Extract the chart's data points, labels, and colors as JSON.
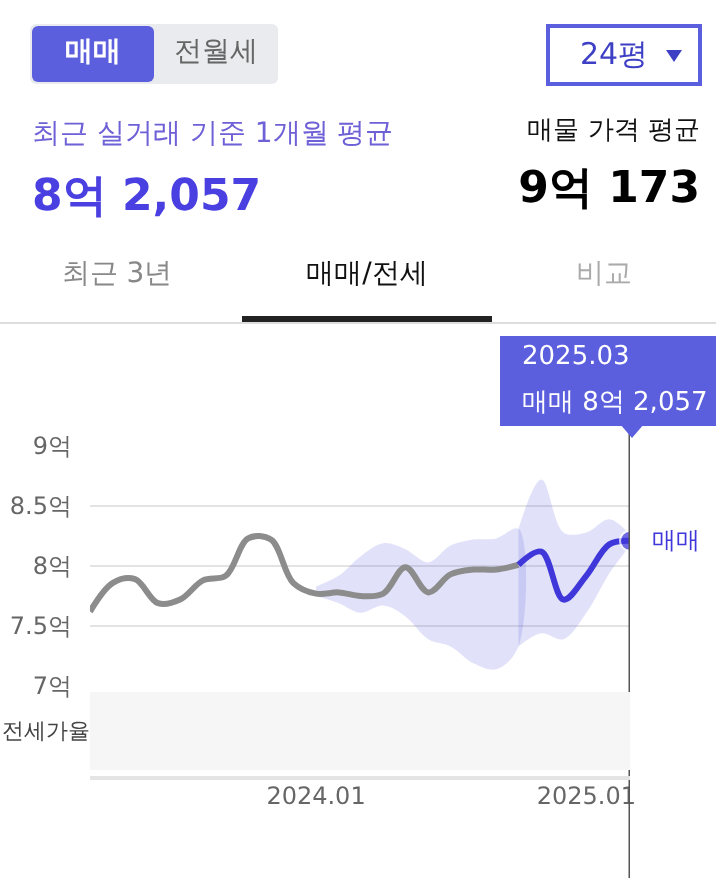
{
  "chart_data": {
    "type": "line",
    "x": [
      "2023-03",
      "2023-04",
      "2023-05",
      "2023-06",
      "2023-07",
      "2023-08",
      "2023-09",
      "2023-10",
      "2023-11",
      "2023-12",
      "2024-01",
      "2024-02",
      "2024-03",
      "2024-04",
      "2024-05",
      "2024-06",
      "2024-07",
      "2024-08",
      "2024-09",
      "2024-10",
      "2024-11",
      "2024-12",
      "2025-01",
      "2025-02",
      "2025-03"
    ],
    "series": [
      {
        "color": "#8c8c8c",
        "values": [
          7.62,
          7.86,
          7.89,
          7.69,
          7.72,
          7.88,
          7.92,
          8.23,
          8.22,
          7.86,
          7.77,
          7.78,
          7.75,
          7.77,
          7.99,
          7.78,
          7.93,
          7.97,
          7.97,
          8.01,
          null,
          null,
          null,
          null,
          null
        ],
        "lower": [
          null,
          null,
          null,
          null,
          null,
          null,
          null,
          null,
          null,
          null,
          7.75,
          7.69,
          7.61,
          7.67,
          7.58,
          7.39,
          7.33,
          7.19,
          7.14,
          7.33,
          null,
          null,
          null,
          null,
          null
        ],
        "upper": [
          null,
          null,
          null,
          null,
          null,
          null,
          null,
          null,
          null,
          null,
          7.83,
          7.92,
          8.08,
          8.19,
          8.14,
          8.03,
          8.17,
          8.22,
          8.23,
          8.31,
          null,
          null,
          null,
          null,
          null
        ]
      },
      {
        "name": "매매",
        "color": "#3f37d9",
        "values": [
          null,
          null,
          null,
          null,
          null,
          null,
          null,
          null,
          null,
          null,
          null,
          null,
          null,
          null,
          null,
          null,
          null,
          null,
          null,
          8.01,
          8.12,
          7.72,
          7.92,
          8.18,
          8.21
        ],
        "lower": [
          null,
          null,
          null,
          null,
          null,
          null,
          null,
          null,
          null,
          null,
          null,
          null,
          null,
          null,
          null,
          null,
          null,
          null,
          null,
          7.33,
          7.44,
          7.39,
          7.61,
          7.94,
          8.19
        ],
        "upper": [
          null,
          null,
          null,
          null,
          null,
          null,
          null,
          null,
          null,
          null,
          null,
          null,
          null,
          null,
          null,
          null,
          null,
          null,
          null,
          8.31,
          8.72,
          8.28,
          8.28,
          8.39,
          8.25
        ]
      }
    ],
    "xlim": [
      "2023-03",
      "2025-03"
    ],
    "xticks": [
      {
        "value": "2024-01",
        "label": "2024.01"
      },
      {
        "value": "2025-01",
        "label": "2025.01"
      }
    ],
    "ylim": [
      7,
      9
    ],
    "yticks": [
      {
        "value": 7,
        "label": "7억"
      },
      {
        "value": 7.5,
        "label": "7.5억"
      },
      {
        "value": 8,
        "label": "8억"
      },
      {
        "value": 8.5,
        "label": "8.5억"
      },
      {
        "value": 9,
        "label": "9억"
      }
    ],
    "grid": "y",
    "ref_lines": [
      {
        "axis": "x",
        "value": "2025-03",
        "color": "#555555"
      }
    ],
    "annotations": [
      "매매",
      "전월세",
      "24평",
      "최근 실거래 기준 1개월 평균",
      "8억 2,057",
      "매물 가격 평균",
      "9억 173",
      "최근 3년",
      "매매/전세",
      "비교",
      "2025.03",
      "매매 8억 2,057",
      "전세가율"
    ]
  }
}
